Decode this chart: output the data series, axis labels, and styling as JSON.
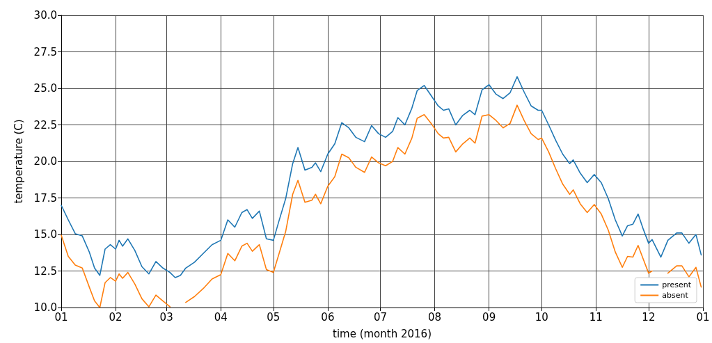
{
  "chart_data": {
    "type": "line",
    "xlabel": "time (month 2016)",
    "ylabel": "temperature (C)",
    "xlim": [
      "2016-01-01",
      "2017-01-01"
    ],
    "xticks": [
      {
        "value": "2016-01-01",
        "label": "01"
      },
      {
        "value": "2016-02-01",
        "label": "02"
      },
      {
        "value": "2016-03-01",
        "label": "03"
      },
      {
        "value": "2016-04-01",
        "label": "04"
      },
      {
        "value": "2016-05-01",
        "label": "05"
      },
      {
        "value": "2016-06-01",
        "label": "06"
      },
      {
        "value": "2016-07-01",
        "label": "07"
      },
      {
        "value": "2016-08-01",
        "label": "08"
      },
      {
        "value": "2016-09-01",
        "label": "09"
      },
      {
        "value": "2016-10-01",
        "label": "10"
      },
      {
        "value": "2016-11-01",
        "label": "11"
      },
      {
        "value": "2016-12-01",
        "label": "12"
      },
      {
        "value": "2017-01-01",
        "label": "01"
      }
    ],
    "ylim": [
      10,
      30
    ],
    "yticks": [
      {
        "value": 10,
        "label": "10.0"
      },
      12.5,
      {
        "value": 15,
        "label": "15.0"
      },
      17.5,
      {
        "value": 20,
        "label": "20.0"
      },
      22.5,
      {
        "value": 25,
        "label": "25.0"
      },
      27.5,
      {
        "value": 30,
        "label": "30.0"
      }
    ],
    "grid": true,
    "legend": "bottom right",
    "marker": "none",
    "line_style": "solid",
    "x": [
      "2016-01-01",
      "2016-01-05",
      "2016-01-09",
      "2016-01-13",
      "2016-01-17",
      "2016-01-20",
      "2016-01-23",
      "2016-01-26",
      "2016-01-29",
      "2016-02-01",
      "2016-02-03",
      "2016-02-05",
      "2016-02-08",
      "2016-02-12",
      "2016-02-16",
      "2016-02-20",
      "2016-02-24",
      "2016-02-28",
      "2016-03-03",
      "2016-03-06",
      "2016-03-09",
      "2016-03-12",
      "2016-03-17",
      "2016-03-22",
      "2016-03-27",
      "2016-04-01",
      "2016-04-05",
      "2016-04-09",
      "2016-04-13",
      "2016-04-16",
      "2016-04-19",
      "2016-04-23",
      "2016-04-27",
      "2016-05-01",
      "2016-05-04",
      "2016-05-08",
      "2016-05-12",
      "2016-05-15",
      "2016-05-19",
      "2016-05-23",
      "2016-05-25",
      "2016-05-28",
      "2016-06-01",
      "2016-06-05",
      "2016-06-09",
      "2016-06-13",
      "2016-06-17",
      "2016-06-22",
      "2016-06-26",
      "2016-06-30",
      "2016-07-04",
      "2016-07-08",
      "2016-07-11",
      "2016-07-15",
      "2016-07-19",
      "2016-07-22",
      "2016-07-26",
      "2016-07-30",
      "2016-08-03",
      "2016-08-06",
      "2016-08-09",
      "2016-08-13",
      "2016-08-17",
      "2016-08-21",
      "2016-08-24",
      "2016-08-28",
      "2016-09-01",
      "2016-09-05",
      "2016-09-09",
      "2016-09-13",
      "2016-09-17",
      "2016-09-21",
      "2016-09-25",
      "2016-09-29",
      "2016-10-01",
      "2016-10-05",
      "2016-10-09",
      "2016-10-13",
      "2016-10-17",
      "2016-10-19",
      "2016-10-23",
      "2016-10-27",
      "2016-10-31",
      "2016-11-04",
      "2016-11-08",
      "2016-11-12",
      "2016-11-16",
      "2016-11-19",
      "2016-11-22",
      "2016-11-25",
      "2016-11-28",
      "2016-12-01",
      "2016-12-03",
      "2016-12-08",
      "2016-12-12",
      "2016-12-17",
      "2016-12-20",
      "2016-12-24",
      "2016-12-28",
      "2016-12-31"
    ],
    "series": [
      {
        "name": "present",
        "color": "#1f77b4",
        "values": [
          17.0,
          16.0,
          15.05,
          14.9,
          13.8,
          12.7,
          12.2,
          14.0,
          14.3,
          14.0,
          14.6,
          14.2,
          14.7,
          13.9,
          12.8,
          12.3,
          13.15,
          12.7,
          12.4,
          12.05,
          12.2,
          12.7,
          13.1,
          13.7,
          14.3,
          14.6,
          16.0,
          15.5,
          16.5,
          16.7,
          16.1,
          16.6,
          14.7,
          14.6,
          15.85,
          17.45,
          19.85,
          20.95,
          19.4,
          19.6,
          19.9,
          19.3,
          20.5,
          21.2,
          22.65,
          22.3,
          21.65,
          21.35,
          22.45,
          21.9,
          21.65,
          22.05,
          23.0,
          22.5,
          23.65,
          24.85,
          25.2,
          24.5,
          23.8,
          23.5,
          23.6,
          22.5,
          23.15,
          23.5,
          23.2,
          24.9,
          25.25,
          24.6,
          24.3,
          24.7,
          25.8,
          24.75,
          23.8,
          23.5,
          23.5,
          22.5,
          21.45,
          20.5,
          19.85,
          20.1,
          19.2,
          18.55,
          19.1,
          18.55,
          17.45,
          16.0,
          14.9,
          15.6,
          15.7,
          16.4,
          15.35,
          14.4,
          14.65,
          13.45,
          14.6,
          15.1,
          15.1,
          14.4,
          15.0,
          13.6
        ]
      },
      {
        "name": "absent",
        "color": "#ff7f0e",
        "values": [
          14.95,
          13.5,
          12.9,
          12.7,
          11.4,
          10.45,
          10.0,
          11.7,
          12.05,
          11.8,
          12.3,
          12.0,
          12.4,
          11.6,
          10.6,
          10.05,
          10.85,
          10.45,
          10.05,
          null,
          null,
          10.35,
          10.75,
          11.3,
          11.95,
          12.25,
          13.7,
          13.2,
          14.2,
          14.4,
          13.85,
          14.3,
          12.6,
          12.4,
          13.6,
          15.2,
          17.75,
          18.7,
          17.2,
          17.35,
          17.75,
          17.1,
          18.3,
          18.95,
          20.5,
          20.25,
          19.6,
          19.25,
          20.3,
          19.9,
          19.7,
          20.0,
          20.95,
          20.5,
          21.6,
          22.95,
          23.2,
          22.6,
          21.9,
          21.6,
          21.65,
          20.65,
          21.2,
          21.6,
          21.25,
          23.1,
          23.2,
          22.8,
          22.3,
          22.6,
          23.85,
          22.8,
          21.9,
          21.5,
          21.6,
          20.65,
          19.5,
          18.45,
          17.75,
          18.05,
          17.1,
          16.5,
          17.05,
          16.4,
          15.3,
          13.8,
          12.75,
          13.5,
          13.45,
          14.25,
          13.3,
          12.35,
          12.5,
          null,
          12.35,
          12.85,
          12.85,
          12.1,
          12.75,
          11.4
        ]
      }
    ]
  }
}
